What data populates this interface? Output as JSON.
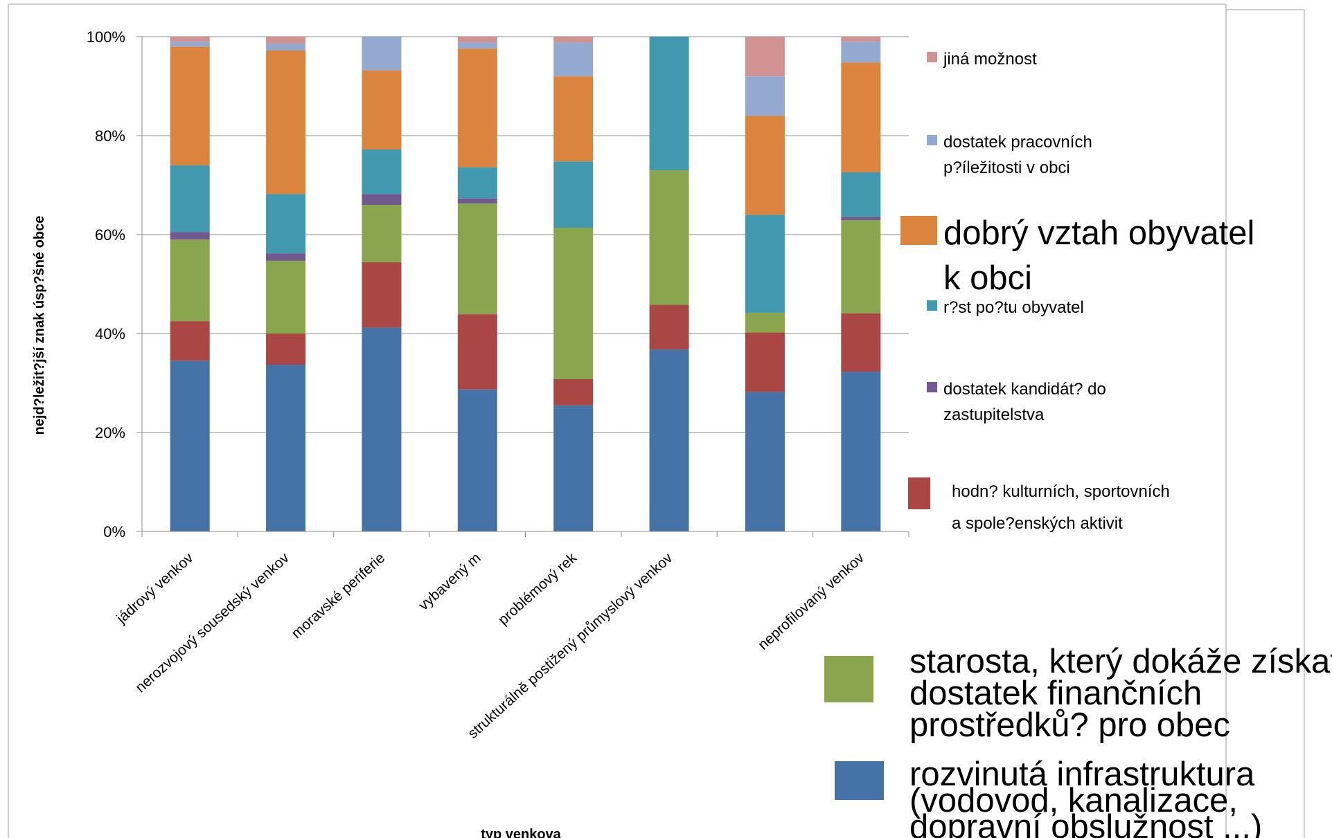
{
  "chart_data": {
    "type": "bar",
    "stacked": "percent",
    "ylabel": "nejd?ležit?jší znak úsp?šné obce",
    "xlabel": "typ venkova",
    "ylim": [
      0,
      100
    ],
    "yticks": [
      "0%",
      "20%",
      "40%",
      "60%",
      "80%",
      "100%"
    ],
    "grid": true,
    "legend_position": "right",
    "categories": [
      "jádrový venkov",
      "nerozvojový sousedský venkov",
      "moravské periferie",
      "vybavený m",
      "problémový rek",
      "strukturálně postižený průmyslový venkov",
      "",
      "neprofilovaný venkov"
    ],
    "series": [
      {
        "name": "rozvinutá infrastruktura (vodovod, kanalizace, dopravní obslužnost ...)",
        "color": "#4572A7",
        "values": [
          34.5,
          33.7,
          41.2,
          28.7,
          25.5,
          36.8,
          28.2,
          32.3
        ]
      },
      {
        "name": "hodn? kulturních, sportovních a spole?enských aktivit",
        "color": "#AA4643",
        "values": [
          8,
          6.3,
          13.2,
          15.2,
          5.3,
          9,
          12,
          11.8
        ]
      },
      {
        "name": "starosta, který dokáže získat dostatek finančních prostředků? pro obec",
        "color": "#89A54E",
        "values": [
          16.5,
          14.7,
          11.6,
          22.4,
          30.6,
          27.2,
          4,
          18.8
        ]
      },
      {
        "name": "dostatek kandidát? do zastupitelstva",
        "color": "#71588F",
        "values": [
          1.5,
          1.5,
          2.2,
          1,
          0,
          0,
          0,
          0.7
        ]
      },
      {
        "name": "r?st po?tu obyvatel",
        "color": "#4198AF",
        "values": [
          13.5,
          12,
          9,
          6.3,
          13.4,
          27,
          19.8,
          9
        ]
      },
      {
        "name": "dobrý vztah obyvatel k obci",
        "color": "#DB843D",
        "values": [
          24,
          29,
          16,
          24,
          17.2,
          0,
          20,
          22.2
        ]
      },
      {
        "name": "dostatek pracovních p?íležitosti v obci",
        "color": "#93A9CF",
        "values": [
          1,
          1.4,
          6.8,
          1.2,
          6.8,
          0,
          8,
          4.2
        ]
      },
      {
        "name": "jiná možnost",
        "color": "#D19392",
        "values": [
          1,
          1.4,
          0,
          1.2,
          1.2,
          0,
          8,
          1
        ]
      }
    ],
    "legend": [
      {
        "color": "#D19392",
        "lines": [
          "jiná možnost"
        ],
        "size": "small"
      },
      {
        "color": "#93A9CF",
        "lines": [
          "dostatek pracovních",
          "p?íležitosti v obci"
        ],
        "size": "small"
      },
      {
        "color": "#DB843D",
        "lines": [
          "dobrý vztah obyvatel",
          "k obci"
        ],
        "size": "big"
      },
      {
        "color": "#4198AF",
        "lines": [
          "r?st po?tu obyvatel"
        ],
        "size": "small"
      },
      {
        "color": "#71588F",
        "lines": [
          "dostatek kandidát? do",
          "zastupitelstva"
        ],
        "size": "small"
      },
      {
        "color": "#AA4643",
        "lines": [
          "hodn? kulturních, sportovních",
          "a spole?enských aktivit"
        ],
        "size": "small"
      },
      {
        "color": "#89A54E",
        "lines": [
          "starosta, který dokáže získat",
          "dostatek finančních",
          "prostředků? pro obec"
        ],
        "size": "big"
      },
      {
        "color": "#4572A7",
        "lines": [
          "rozvinutá infrastruktura",
          "(vodovod, kanalizace,",
          "dopravní obslužnost ...)"
        ],
        "size": "big"
      }
    ]
  }
}
